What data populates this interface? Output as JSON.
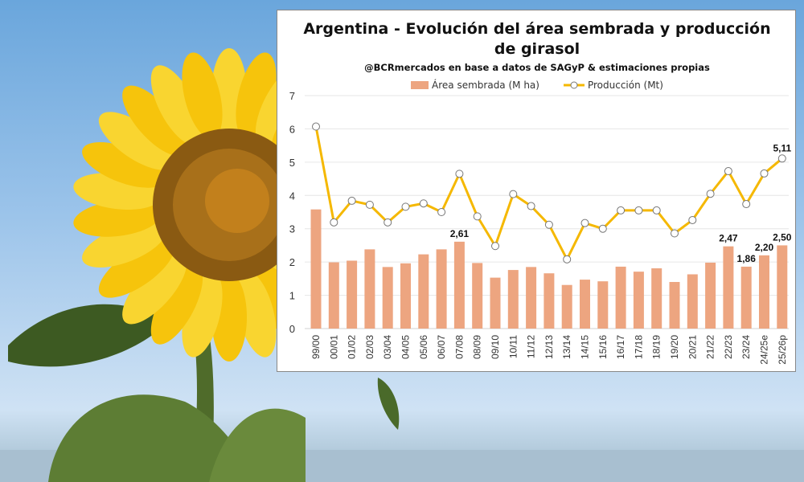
{
  "chart_data": {
    "type": "bar+line",
    "title_line1": "Argentina - Evolución del área sembrada y producción",
    "title_line2": "de girasol",
    "subtitle": "@BCRmercados en base a datos de SAGyP & estimaciones propias",
    "ylim": [
      0,
      7
    ],
    "yticks": [
      "0",
      "1",
      "2",
      "3",
      "4",
      "5",
      "6",
      "7"
    ],
    "grid": true,
    "legend_position": "top",
    "categories": [
      "99/00",
      "00/01",
      "01/02",
      "02/03",
      "03/04",
      "04/05",
      "05/06",
      "06/07",
      "07/08",
      "08/09",
      "09/10",
      "10/11",
      "11/12",
      "12/13",
      "13/14",
      "14/15",
      "15/16",
      "16/17",
      "17/18",
      "18/19",
      "19/20",
      "20/21",
      "21/22",
      "22/23",
      "23/24",
      "24/25e",
      "25/26p"
    ],
    "series": [
      {
        "name": "Área sembrada (M ha)",
        "type": "bar",
        "color": "#eda580",
        "values": [
          3.58,
          1.99,
          2.04,
          2.38,
          1.85,
          1.96,
          2.23,
          2.38,
          2.61,
          1.97,
          1.53,
          1.76,
          1.85,
          1.66,
          1.31,
          1.47,
          1.42,
          1.86,
          1.71,
          1.81,
          1.4,
          1.63,
          1.98,
          2.47,
          1.86,
          2.2,
          2.5
        ]
      },
      {
        "name": "Producción (Mt)",
        "type": "line",
        "color": "#f5b800",
        "values": [
          6.07,
          3.19,
          3.84,
          3.72,
          3.19,
          3.66,
          3.76,
          3.5,
          4.65,
          3.37,
          2.48,
          4.04,
          3.68,
          3.12,
          2.08,
          3.17,
          3.0,
          3.55,
          3.55,
          3.55,
          2.86,
          3.26,
          4.05,
          4.73,
          3.74,
          4.66,
          5.11
        ]
      }
    ],
    "annotations": [
      {
        "series": 0,
        "category": "07/08",
        "text": "2,61"
      },
      {
        "series": 0,
        "category": "22/23",
        "text": "2,47"
      },
      {
        "series": 0,
        "category": "23/24",
        "text": "1,86"
      },
      {
        "series": 0,
        "category": "24/25e",
        "text": "2,20"
      },
      {
        "series": 0,
        "category": "25/26p",
        "text": "2,50"
      },
      {
        "series": 1,
        "category": "25/26p",
        "text": "5,11"
      }
    ]
  }
}
